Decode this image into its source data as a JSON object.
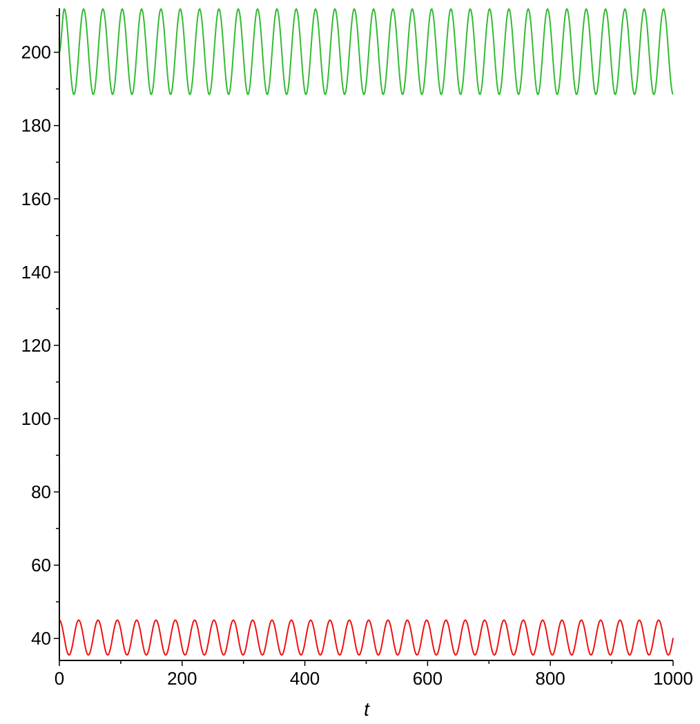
{
  "chart_data": {
    "type": "line",
    "title": "",
    "xlabel": "t",
    "ylabel": "",
    "xlim": [
      0,
      1000
    ],
    "ylim": [
      34,
      212
    ],
    "grid": false,
    "legend": "none",
    "x_ticks": [
      0,
      200,
      400,
      600,
      800,
      1000
    ],
    "x_tick_labels": [
      "0",
      "200",
      "400",
      "600",
      "800",
      "1000"
    ],
    "x_minor_ticks": [
      100,
      300,
      500,
      700,
      900
    ],
    "y_ticks": [
      40,
      60,
      80,
      100,
      120,
      140,
      160,
      180,
      200
    ],
    "y_tick_labels": [
      "40",
      "60",
      "80",
      "100",
      "120",
      "140",
      "160",
      "180",
      "200"
    ],
    "y_minor_ticks": [
      50,
      70,
      90,
      110,
      130,
      150,
      170,
      190,
      210
    ],
    "series": [
      {
        "color": "#33bb33",
        "form": "oscillation",
        "start_value": 200,
        "min": 188.5,
        "max": 211.8,
        "period": 31.5,
        "first_peak_t": 8,
        "end_value": 188.8,
        "t_range": [
          0,
          1000
        ]
      },
      {
        "color": "#ee1111",
        "form": "oscillation",
        "start_value": 45,
        "min": 35.5,
        "max": 45,
        "period": 31.5,
        "first_peak_t": 0,
        "end_value": 41.5,
        "t_range": [
          0,
          1000
        ]
      }
    ]
  }
}
